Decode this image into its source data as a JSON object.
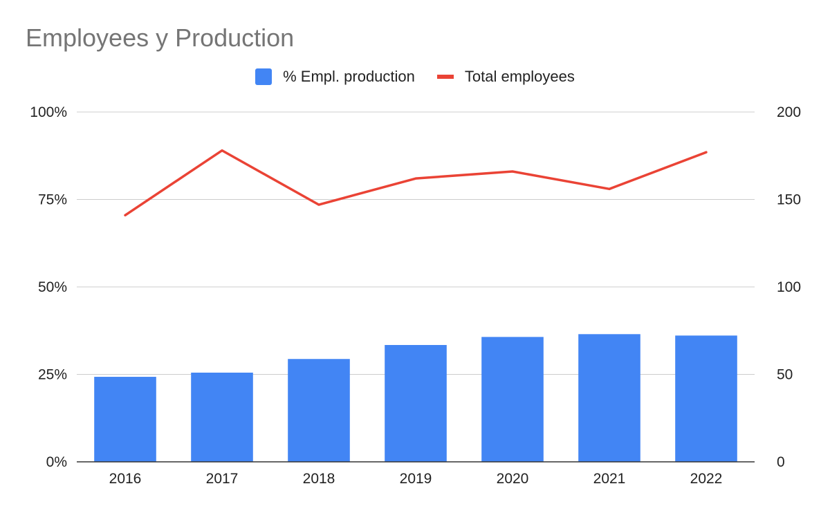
{
  "chart_data": {
    "type": "bar",
    "title": "Employees y Production",
    "categories": [
      "2016",
      "2017",
      "2018",
      "2019",
      "2020",
      "2021",
      "2022"
    ],
    "series": [
      {
        "name": "% Empl. production",
        "type": "bar",
        "axis": "left",
        "color": "#4285f4",
        "values": [
          24.3,
          25.5,
          29.4,
          33.4,
          35.7,
          36.5,
          36.1
        ]
      },
      {
        "name": "Total employees",
        "type": "line",
        "axis": "right",
        "color": "#ea4335",
        "values": [
          141,
          178,
          147,
          162,
          166,
          156,
          177
        ]
      }
    ],
    "left_axis": {
      "range": [
        0,
        100
      ],
      "ticks": [
        "0%",
        "25%",
        "50%",
        "75%",
        "100%"
      ]
    },
    "right_axis": {
      "range": [
        0,
        200
      ],
      "ticks": [
        "0",
        "50",
        "100",
        "150",
        "200"
      ]
    },
    "grid": true,
    "legend_position": "top-center"
  }
}
